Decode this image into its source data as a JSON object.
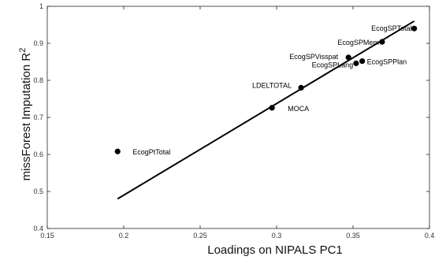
{
  "chart_data": {
    "type": "scatter",
    "xlabel": "Loadings on NIPALS PC1",
    "ylabel": "missForest Imputation R",
    "ylabel_superscript": "2",
    "xlim": [
      0.15,
      0.4
    ],
    "ylim": [
      0.4,
      1.0
    ],
    "xticks": [
      0.15,
      0.2,
      0.25,
      0.3,
      0.35,
      0.4
    ],
    "xtick_labels": [
      "0.15",
      "0.2",
      "0.25",
      "0.3",
      "0.35",
      "0.4"
    ],
    "yticks": [
      0.4,
      0.5,
      0.6,
      0.7,
      0.8,
      0.9,
      1.0
    ],
    "ytick_labels": [
      "0.4",
      "0.5",
      "0.6",
      "0.7",
      "0.8",
      "0.9",
      "1"
    ],
    "grid": false,
    "points": [
      {
        "label": "EcogPtTotal",
        "x": 0.196,
        "y": 0.608
      },
      {
        "label": "MOCA",
        "x": 0.297,
        "y": 0.726
      },
      {
        "label": "LDELTOTAL",
        "x": 0.316,
        "y": 0.78
      },
      {
        "label": "EcogSPVisspat",
        "x": 0.347,
        "y": 0.862
      },
      {
        "label": "EcogSPLang",
        "x": 0.352,
        "y": 0.846
      },
      {
        "label": "EcogSPPlan",
        "x": 0.356,
        "y": 0.852
      },
      {
        "label": "EcogSPMem",
        "x": 0.369,
        "y": 0.904
      },
      {
        "label": "EcogSPTotal",
        "x": 0.39,
        "y": 0.94
      }
    ],
    "fit_line": {
      "x": [
        0.196,
        0.39
      ],
      "y": [
        0.48,
        0.96
      ]
    }
  }
}
